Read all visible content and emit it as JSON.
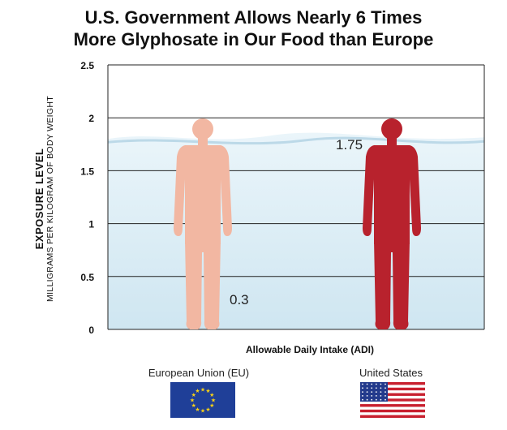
{
  "chart_data": {
    "type": "bar",
    "title": [
      "U.S. Government Allows Nearly 6 Times",
      "More Glyphosate in Our Food than Europe"
    ],
    "ylabel": "EXPOSURE LEVEL",
    "ylabel_sub": "MILLIGRAMS PER KILOGRAM OF BODY WEIGHT",
    "xlabel": "Allowable Daily Intake (ADI)",
    "ylim": [
      0,
      2.5
    ],
    "yticks": [
      0,
      0.5,
      1,
      1.5,
      2,
      2.5
    ],
    "ytick_labels": [
      "0",
      "0.5",
      "1",
      "1.5",
      "2",
      "2.5"
    ],
    "grid": true,
    "categories": [
      "European Union (EU)",
      "United States"
    ],
    "values": [
      0.3,
      1.75
    ],
    "value_labels": [
      "0.3",
      "1.75"
    ],
    "colors": {
      "eu_figure": "#f2b7a2",
      "eu_fill": "#243f96",
      "us_figure": "#b8222d",
      "water": "#d8ecf5"
    }
  },
  "flags": {
    "eu_icon": "eu-flag-icon",
    "us_icon": "us-flag-icon"
  }
}
